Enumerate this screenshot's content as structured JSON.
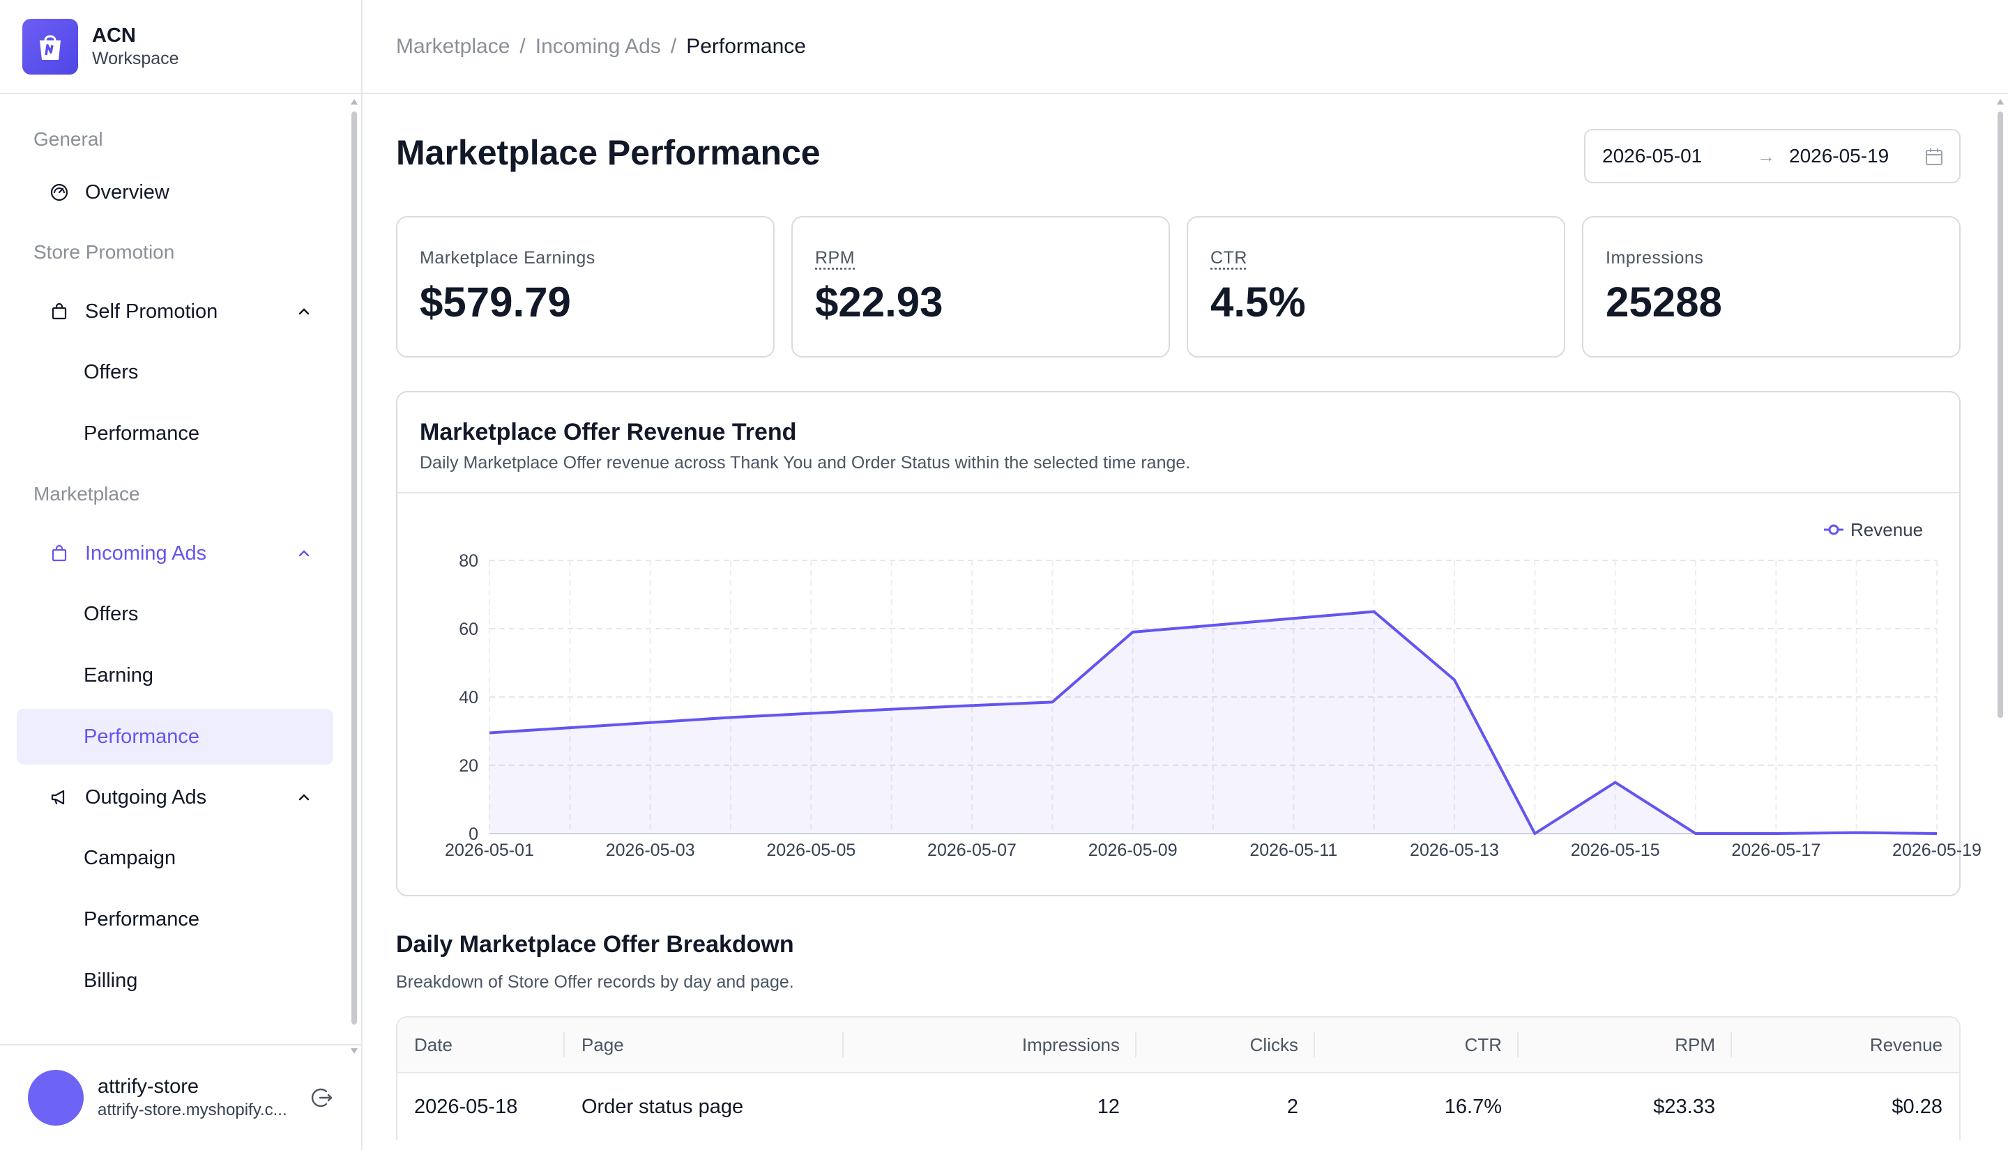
{
  "brand": {
    "name": "ACN",
    "subtitle": "Workspace"
  },
  "sidebar": {
    "groups": [
      {
        "label": "General"
      },
      {
        "label": "Store Promotion"
      },
      {
        "label": "Marketplace"
      }
    ],
    "overview": "Overview",
    "self_promotion": {
      "label": "Self Promotion",
      "items": [
        "Offers",
        "Performance"
      ]
    },
    "incoming_ads": {
      "label": "Incoming Ads",
      "items": [
        "Offers",
        "Earning",
        "Performance"
      ]
    },
    "outgoing_ads": {
      "label": "Outgoing Ads",
      "items": [
        "Campaign",
        "Performance",
        "Billing"
      ]
    }
  },
  "user": {
    "name": "attrify-store",
    "domain": "attrify-store.myshopify.c..."
  },
  "breadcrumb": [
    "Marketplace",
    "Incoming Ads",
    "Performance"
  ],
  "page": {
    "title": "Marketplace Performance"
  },
  "date_range": {
    "start": "2026-05-01",
    "end": "2026-05-19",
    "arrow": "→"
  },
  "kpis": [
    {
      "label": "Marketplace Earnings",
      "value": "$579.79"
    },
    {
      "label": "RPM",
      "value": "$22.93"
    },
    {
      "label": "CTR",
      "value": "4.5%"
    },
    {
      "label": "Impressions",
      "value": "25288"
    }
  ],
  "chart": {
    "title": "Marketplace Offer Revenue Trend",
    "subtitle": "Daily Marketplace Offer revenue across Thank You and Order Status  within the selected time range."
  },
  "chart_data": {
    "type": "area",
    "x": [
      "2026-05-01",
      "2026-05-02",
      "2026-05-03",
      "2026-05-04",
      "2026-05-05",
      "2026-05-06",
      "2026-05-07",
      "2026-05-08",
      "2026-05-09",
      "2026-05-10",
      "2026-05-11",
      "2026-05-12",
      "2026-05-13",
      "2026-05-14",
      "2026-05-15",
      "2026-05-16",
      "2026-05-17",
      "2026-05-18",
      "2026-05-19"
    ],
    "series": [
      {
        "name": "Revenue",
        "values": [
          29.5,
          31,
          32.5,
          34,
          35.2,
          36.4,
          37.5,
          38.5,
          59,
          61,
          63,
          65,
          45,
          0,
          15,
          0,
          0,
          0.28,
          0
        ]
      }
    ],
    "xticks": [
      "2026-05-01",
      "2026-05-03",
      "2026-05-05",
      "2026-05-07",
      "2026-05-09",
      "2026-05-11",
      "2026-05-13",
      "2026-05-15",
      "2026-05-17",
      "2026-05-19"
    ],
    "yticks": [
      "0",
      "20",
      "40",
      "60",
      "80"
    ],
    "ylim": [
      0,
      80
    ],
    "grid": true,
    "legend": "top-right",
    "color": "#6355f0"
  },
  "breakdown": {
    "title": "Daily Marketplace Offer Breakdown",
    "subtitle": "Breakdown of Store Offer records by day and page.",
    "columns": [
      "Date",
      "Page",
      "Impressions",
      "Clicks",
      "CTR",
      "RPM",
      "Revenue"
    ],
    "rows": [
      [
        "2026-05-18",
        "Order status page",
        "12",
        "2",
        "16.7%",
        "$23.33",
        "$0.28"
      ]
    ]
  }
}
